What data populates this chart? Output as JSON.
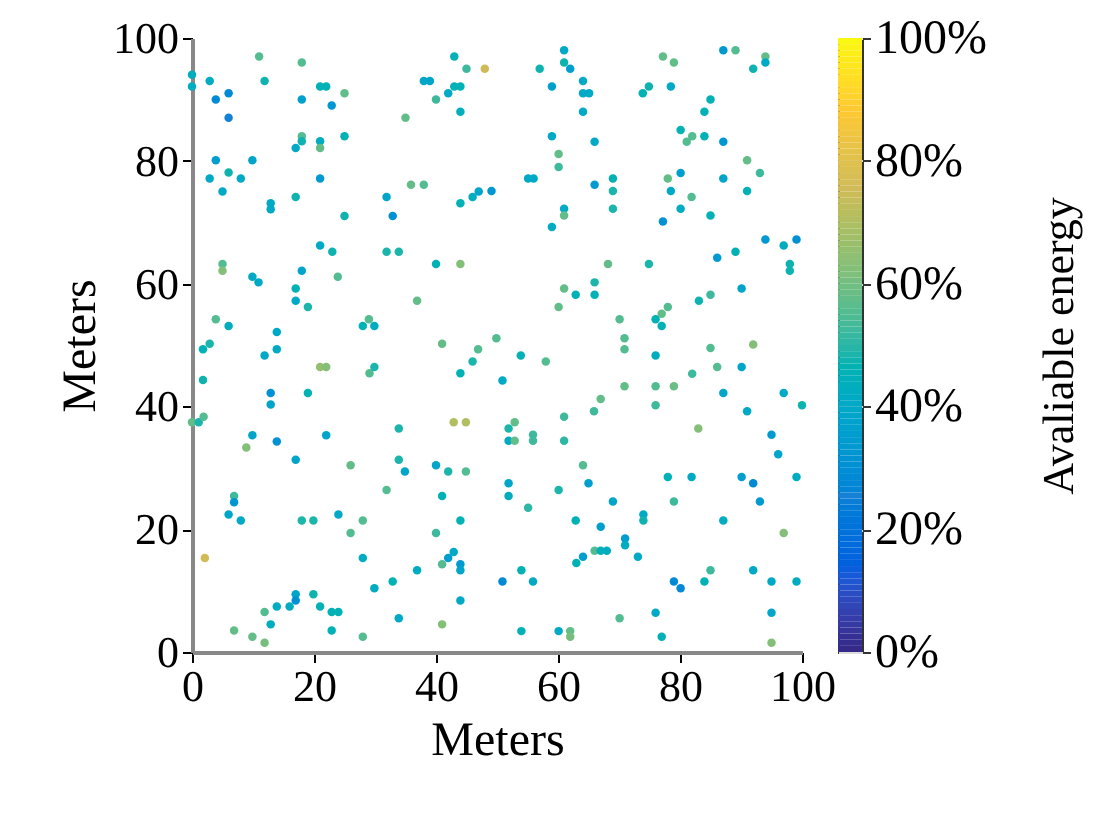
{
  "chart_data": {
    "type": "scatter",
    "xlabel": "Meters",
    "ylabel": "Meters",
    "clabel": "Avaliable energy",
    "xlim": [
      0,
      100
    ],
    "ylim": [
      0,
      100
    ],
    "xticks": [
      0,
      20,
      40,
      60,
      80,
      100
    ],
    "yticks": [
      0,
      20,
      40,
      60,
      80,
      100
    ],
    "clim": [
      0,
      100
    ],
    "cticks": [
      {
        "value": 0,
        "label": "0%"
      },
      {
        "value": 20,
        "label": "20%"
      },
      {
        "value": 40,
        "label": "40%"
      },
      {
        "value": 60,
        "label": "60%"
      },
      {
        "value": 80,
        "label": "80%"
      },
      {
        "value": 100,
        "label": "100%"
      }
    ],
    "grid": false,
    "marker": "circle",
    "x": [
      11.0,
      18.0,
      0,
      2.9,
      0,
      11.9,
      3.9,
      6.0,
      6.0,
      18.0,
      21.0,
      22.0,
      25.0,
      22.9,
      35.0,
      38.0,
      39.0,
      43.0,
      45.0,
      48.0,
      42.0,
      43.0,
      44.0,
      40.0,
      44.0,
      18.0,
      18.0,
      17.0,
      21.0,
      21.0,
      25.0,
      3.9,
      2.9,
      6.0,
      8.0,
      9.9,
      5.0,
      21.0,
      12.9,
      12.9,
      17.0,
      25.0,
      31.9,
      32.9,
      35.9,
      38.0,
      44.0,
      46.0,
      47.0,
      21.0,
      23.0,
      5.0,
      5.0,
      18.0,
      31.9,
      33.9,
      40.0,
      44.0,
      9.9,
      10.9,
      23.9,
      17.0,
      17.0,
      19.0,
      36.9,
      3.9,
      6.0,
      13.9,
      28.0,
      29.9,
      29.0,
      49.9,
      1.8,
      2.9,
      11.9,
      13.9,
      21.0,
      22.0,
      29.1,
      29.9,
      41.0,
      46.9,
      46.0,
      44.0,
      1.8,
      12.9,
      12.9,
      19.0,
      0,
      1.1,
      1.9,
      9.9,
      13.9,
      22.0,
      8.9,
      17.0,
      26.0,
      33.9,
      33.9,
      34.9,
      40.0,
      42.0,
      44.9,
      42.9,
      44.9,
      31.9,
      41.0,
      6.9,
      6.9,
      6.0,
      8.0,
      18.0,
      19.9,
      24.0,
      28.0,
      26.0,
      40.0,
      44.0,
      2.1,
      28.0,
      42.9,
      42.0,
      41.0,
      44.0,
      44.0,
      36.9,
      32.9,
      29.9,
      17.0,
      17.0,
      16.0,
      13.9,
      19.9,
      21.0,
      11.9,
      12.9,
      22.9,
      24.0,
      22.9,
      6.9,
      9.9,
      11.9,
      28.0,
      33.9,
      41.0,
      44.0,
      61.0,
      61.0,
      62.0,
      57.0,
      59.0,
      64.1,
      64.1,
      65.1,
      64.1,
      73.9,
      74.9,
      78.5,
      77.2,
      79.0,
      87.1,
      89.1,
      94.0,
      94.0,
      92.0,
      85.0,
      84.0,
      80.1,
      82.0,
      81.1,
      84.0,
      87.1,
      59.0,
      66.0,
      60.1,
      60.1,
      55.1,
      56.0,
      49.1,
      66.0,
      69.0,
      69.0,
      69.0,
      61.0,
      61.0,
      59.0,
      78.0,
      80.1,
      78.5,
      81.9,
      80.1,
      77.2,
      85.0,
      87.1,
      91.0,
      93.1,
      91.0,
      94.0,
      97.0,
      99.1,
      86.1,
      89.1,
      98.0,
      98.0,
      68.2,
      74.9,
      66.0,
      66.0,
      62.9,
      61.0,
      60.1,
      90.1,
      85.0,
      83.1,
      78.0,
      77.0,
      76.0,
      77.0,
      70.1,
      70.9,
      92.0,
      85.0,
      70.9,
      53.9,
      58.0,
      76.0,
      50.9,
      90.1,
      86.1,
      82.0,
      70.9,
      76.0,
      79.0,
      76.0,
      67.0,
      65.9,
      61.0,
      52.9,
      51.9,
      51.9,
      52.9,
      55.9,
      55.9,
      61.0,
      83.0,
      87.1,
      91.0,
      97.0,
      100,
      95.0,
      96.1,
      64.1,
      51.9,
      51.9,
      60.1,
      55.1,
      65.0,
      78.0,
      81.9,
      90.1,
      92.0,
      93.1,
      99.1,
      69.0,
      79.0,
      62.9,
      67.0,
      74.0,
      74.0,
      87.1,
      97.0,
      71.0,
      71.0,
      66.0,
      67.0,
      68.0,
      64.1,
      63.0,
      73.1,
      54.0,
      50.9,
      55.9,
      79.0,
      80.1,
      84.0,
      85.0,
      92.0,
      95.0,
      99.1,
      76.0,
      95.0,
      70.1,
      54.0,
      60.1,
      62.0,
      62.0,
      77.0,
      95.0
    ],
    "values": [
      97.0,
      96.0,
      94.0,
      93.0,
      92.1,
      93.0,
      90.0,
      91.0,
      87.0,
      90.0,
      92.1,
      92.1,
      91.0,
      89.0,
      87.0,
      93.0,
      93.0,
      97.0,
      95.0,
      95.0,
      91.0,
      92.1,
      92.1,
      90.0,
      88.0,
      84.0,
      83.2,
      82.1,
      83.2,
      82.1,
      84.0,
      80.1,
      77.1,
      78.1,
      77.1,
      80.1,
      75.0,
      77.1,
      73.1,
      72.1,
      74.1,
      71.0,
      74.1,
      71.0,
      76.1,
      76.1,
      73.1,
      74.1,
      75.0,
      66.2,
      65.2,
      63.2,
      62.1,
      62.1,
      65.2,
      65.2,
      63.2,
      63.2,
      61.1,
      60.2,
      61.1,
      59.2,
      57.2,
      56.2,
      57.2,
      54.2,
      53.1,
      52.1,
      53.1,
      53.1,
      54.2,
      51.1,
      49.3,
      50.2,
      48.3,
      49.3,
      46.4,
      46.4,
      45.4,
      46.4,
      50.2,
      49.3,
      47.3,
      45.4,
      44.3,
      42.2,
      40.3,
      42.2,
      37.4,
      37.4,
      38.3,
      35.3,
      34.3,
      35.3,
      33.3,
      31.3,
      30.4,
      36.4,
      31.3,
      29.4,
      30.4,
      29.4,
      29.4,
      37.4,
      37.4,
      26.4,
      25.4,
      25.4,
      24.4,
      22.4,
      21.4,
      21.4,
      21.4,
      22.4,
      21.4,
      19.4,
      19.4,
      21.4,
      15.3,
      15.3,
      16.3,
      15.3,
      14.3,
      14.3,
      13.3,
      13.3,
      11.5,
      10.4,
      9.4,
      8.4,
      7.4,
      7.4,
      9.4,
      7.4,
      6.5,
      4.5,
      6.5,
      6.5,
      3.5,
      3.5,
      2.5,
      1.5,
      2.5,
      5.5,
      4.5,
      8.4,
      98.0,
      96.0,
      95.0,
      95.0,
      92.1,
      93.0,
      91.0,
      91.0,
      88.0,
      91.0,
      92.1,
      92.1,
      97.0,
      96.0,
      98.0,
      98.0,
      97.0,
      96.0,
      95.0,
      90.0,
      88.0,
      85.0,
      84.0,
      83.1,
      84.0,
      83.1,
      84.0,
      83.1,
      81.1,
      79.0,
      77.1,
      77.1,
      75.1,
      76.1,
      77.1,
      75.1,
      72.2,
      72.2,
      71.1,
      69.2,
      77.1,
      78.0,
      75.1,
      74.1,
      72.2,
      70.1,
      71.1,
      77.1,
      80.1,
      78.0,
      75.1,
      67.2,
      66.2,
      67.2,
      64.2,
      65.2,
      63.2,
      62.1,
      63.2,
      63.2,
      60.2,
      58.2,
      58.2,
      59.2,
      56.2,
      59.2,
      58.2,
      57.2,
      56.2,
      55.1,
      54.2,
      53.1,
      54.2,
      51.1,
      50.1,
      49.5,
      49.3,
      48.3,
      47.3,
      48.3,
      44.2,
      46.4,
      46.4,
      45.3,
      43.3,
      43.3,
      43.3,
      40.2,
      41.2,
      39.2,
      38.3,
      37.4,
      36.4,
      34.4,
      34.4,
      35.4,
      34.4,
      34.4,
      36.4,
      42.2,
      39.2,
      42.2,
      40.2,
      35.4,
      32.2,
      30.4,
      27.5,
      25.4,
      26.4,
      23.5,
      27.5,
      28.5,
      28.5,
      28.5,
      27.5,
      24.5,
      28.5,
      24.5,
      24.5,
      21.4,
      20.4,
      22.4,
      21.4,
      21.4,
      19.4,
      18.5,
      17.4,
      16.5,
      16.5,
      16.5,
      15.5,
      14.5,
      15.5,
      13.3,
      11.5,
      11.5,
      11.5,
      10.4,
      11.5,
      13.3,
      13.3,
      11.5,
      11.5,
      6.4,
      6.4,
      5.5,
      3.4,
      3.4,
      3.4,
      2.5,
      2.5,
      1.5
    ],
    "cvalues": [
      55,
      55,
      42,
      42,
      42,
      47,
      28,
      28,
      25,
      36,
      45,
      45,
      57,
      32,
      57,
      38,
      38,
      45,
      52,
      75,
      40,
      45,
      45,
      52,
      43,
      55,
      47,
      40,
      42,
      57,
      45,
      35,
      40,
      47,
      40,
      38,
      40,
      33,
      40,
      40,
      47,
      47,
      38,
      30,
      57,
      55,
      45,
      42,
      38,
      40,
      47,
      55,
      62,
      38,
      48,
      48,
      45,
      62,
      40,
      40,
      55,
      45,
      40,
      48,
      57,
      55,
      42,
      40,
      45,
      42,
      55,
      55,
      45,
      48,
      40,
      40,
      65,
      62,
      55,
      48,
      57,
      55,
      48,
      45,
      47,
      30,
      38,
      45,
      57,
      48,
      55,
      38,
      30,
      38,
      62,
      38,
      57,
      48,
      48,
      38,
      38,
      48,
      55,
      70,
      70,
      55,
      45,
      52,
      32,
      38,
      40,
      48,
      48,
      40,
      55,
      55,
      52,
      45,
      75,
      42,
      40,
      35,
      55,
      33,
      38,
      42,
      45,
      42,
      38,
      30,
      42,
      42,
      47,
      45,
      55,
      42,
      45,
      45,
      45,
      57,
      57,
      60,
      55,
      40,
      62,
      40,
      40,
      47,
      35,
      47,
      36,
      40,
      40,
      40,
      40,
      45,
      47,
      40,
      57,
      57,
      33,
      55,
      57,
      40,
      47,
      45,
      45,
      45,
      55,
      55,
      45,
      32,
      40,
      40,
      57,
      52,
      40,
      40,
      32,
      33,
      45,
      48,
      48,
      40,
      57,
      42,
      57,
      35,
      40,
      55,
      42,
      30,
      45,
      38,
      57,
      52,
      45,
      33,
      42,
      30,
      33,
      45,
      47,
      47,
      57,
      48,
      48,
      45,
      45,
      57,
      57,
      38,
      52,
      47,
      55,
      57,
      45,
      45,
      55,
      55,
      62,
      55,
      55,
      45,
      55,
      42,
      40,
      38,
      55,
      52,
      57,
      55,
      58,
      52,
      57,
      52,
      52,
      57,
      48,
      42,
      57,
      52,
      52,
      50,
      62,
      38,
      40,
      40,
      47,
      33,
      38,
      55,
      38,
      42,
      48,
      50,
      35,
      45,
      40,
      35,
      28,
      33,
      42,
      38,
      52,
      45,
      35,
      40,
      47,
      42,
      62,
      35,
      42,
      55,
      45,
      42,
      35,
      45,
      40,
      45,
      28,
      40,
      28,
      28,
      45,
      52,
      40,
      40,
      42,
      40,
      38,
      55,
      45,
      40,
      57,
      60,
      45,
      62
    ]
  }
}
